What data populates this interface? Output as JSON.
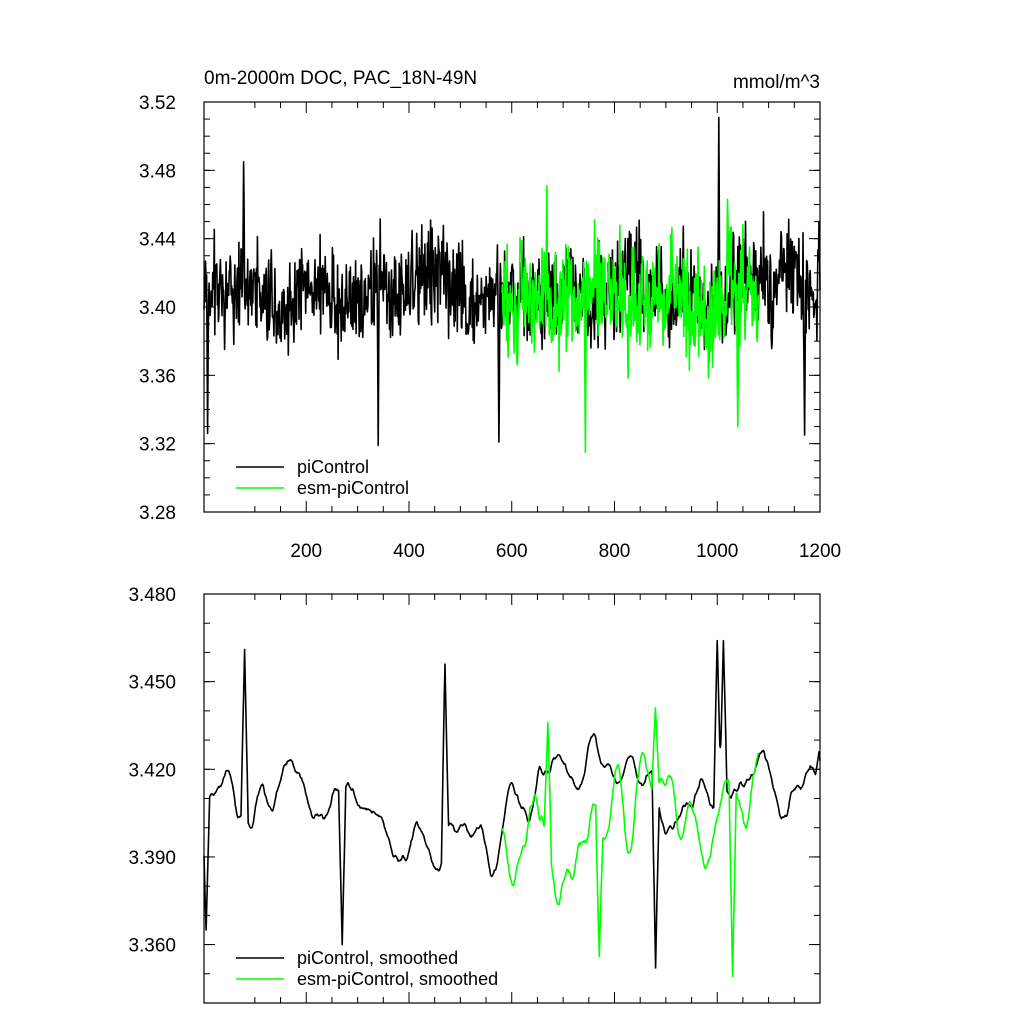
{
  "chart_data": [
    {
      "type": "line",
      "title": "0m-2000m DOC, PAC_18N-49N",
      "units": "mmol/m^3",
      "xlim": [
        1,
        1200
      ],
      "ylim": [
        3.28,
        3.52
      ],
      "xticks": [
        200,
        400,
        600,
        800,
        1000,
        1200
      ],
      "xtick_labels": [
        "200",
        "400",
        "600",
        "800",
        "1000",
        "1200"
      ],
      "yticks": [
        3.28,
        3.32,
        3.36,
        3.4,
        3.44,
        3.48,
        3.52
      ],
      "ytick_labels": [
        "3.28",
        "3.32",
        "3.36",
        "3.40",
        "3.44",
        "3.48",
        "3.52"
      ],
      "grid": false,
      "legend_position": "bottom-left",
      "series": [
        {
          "name": "piControl",
          "color": "#000000",
          "x_start": 1,
          "x_end": 1200,
          "n": 1200,
          "mean": 3.41,
          "amplitude": 0.022,
          "keypoints": [
            [
              8,
              3.326
            ],
            [
              78,
              3.485
            ],
            [
              340,
              3.319
            ],
            [
              575,
              3.321
            ],
            [
              1003,
              3.511
            ],
            [
              1170,
              3.325
            ],
            [
              1198,
              3.45
            ]
          ]
        },
        {
          "name": "esm-piControl",
          "color": "#00ff00",
          "x_start": 580,
          "x_end": 1080,
          "n": 500,
          "mean": 3.405,
          "amplitude": 0.025,
          "keypoints": [
            [
              668,
              3.471
            ],
            [
              743,
              3.315
            ],
            [
              1020,
              3.463
            ],
            [
              1040,
              3.33
            ]
          ]
        }
      ]
    },
    {
      "type": "line",
      "title": "",
      "xlim": [
        1,
        1200
      ],
      "ylim": [
        3.34,
        3.48
      ],
      "xticks": [
        200,
        400,
        600,
        800,
        1000,
        1200
      ],
      "xtick_labels": [],
      "yticks": [
        3.36,
        3.39,
        3.42,
        3.45,
        3.48
      ],
      "ytick_labels": [
        "3.360",
        "3.390",
        "3.420",
        "3.450",
        "3.480"
      ],
      "grid": false,
      "legend_position": "bottom-left",
      "series": [
        {
          "name": "piControl, smoothed",
          "color": "#000000",
          "x_start": 1,
          "x_end": 1200,
          "n": 1200,
          "mean": 3.408,
          "amplitude": 0.013,
          "keypoints": [
            [
              5,
              3.365
            ],
            [
              80,
              3.461
            ],
            [
              270,
              3.36
            ],
            [
              470,
              3.456
            ],
            [
              880,
              3.352
            ],
            [
              1000,
              3.464
            ],
            [
              1012,
              3.464
            ],
            [
              1198,
              3.426
            ]
          ]
        },
        {
          "name": "esm-piControl, smoothed",
          "color": "#00ff00",
          "x_start": 580,
          "x_end": 1080,
          "n": 500,
          "mean": 3.404,
          "amplitude": 0.016,
          "keypoints": [
            [
              670,
              3.436
            ],
            [
              770,
              3.356
            ],
            [
              880,
              3.441
            ],
            [
              1030,
              3.349
            ]
          ]
        }
      ]
    }
  ]
}
